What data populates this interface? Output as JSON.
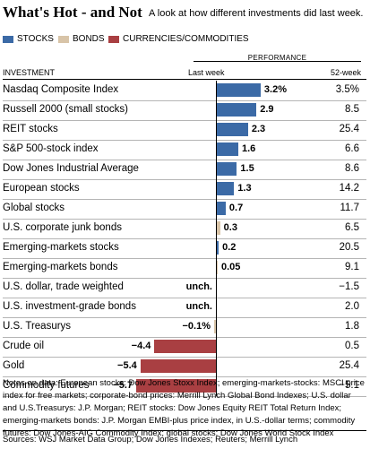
{
  "header": {
    "title": "What's Hot - and Not",
    "subtitle": "A look at how different investments did last week."
  },
  "legend": [
    {
      "label": "STOCKS",
      "color": "#3b6aa6"
    },
    {
      "label": "BONDS",
      "color": "#d8c4a8"
    },
    {
      "label": "CURRENCIES/COMMODITIES",
      "color": "#a93f42"
    }
  ],
  "columns": {
    "performance": "PERFORMANCE",
    "investment": "INVESTMENT",
    "last_week": "Last week",
    "week52": "52-week"
  },
  "chart_data": {
    "type": "bar",
    "title": "What's Hot - and Not",
    "categories": [
      "Nasdaq Composite Index",
      "Russell 2000 (small stocks)",
      "REIT stocks",
      "S&P 500-stock index",
      "Dow Jones Industrial Average",
      "European stocks",
      "Global stocks",
      "U.S. corporate junk bonds",
      "Emerging-markets stocks",
      "Emerging-markets bonds",
      "U.S. dollar, trade weighted",
      "U.S. investment-grade bonds",
      "U.S. Treasurys",
      "Crude oil",
      "Gold",
      "Commodity futures"
    ],
    "last_week": [
      3.2,
      2.9,
      2.3,
      1.6,
      1.5,
      1.3,
      0.7,
      0.3,
      0.2,
      0.05,
      0,
      0,
      -0.1,
      -4.4,
      -5.4,
      -5.7
    ],
    "last_week_labels": [
      "3.2%",
      "2.9",
      "2.3",
      "1.6",
      "1.5",
      "1.3",
      "0.7",
      "0.3",
      "0.2",
      "0.05",
      "unch.",
      "unch.",
      "−0.1%",
      "−4.4",
      "−5.4",
      "−5.7"
    ],
    "week52_labels": [
      "3.5%",
      "8.5",
      "25.4",
      "6.6",
      "8.6",
      "14.2",
      "11.7",
      "6.5",
      "20.5",
      "9.1",
      "−1.5",
      "2.0",
      "1.8",
      "0.5",
      "25.4",
      "−5.1"
    ],
    "week52": [
      3.5,
      8.5,
      25.4,
      6.6,
      8.6,
      14.2,
      11.7,
      6.5,
      20.5,
      9.1,
      -1.5,
      2.0,
      1.8,
      0.5,
      25.4,
      -5.1
    ],
    "group": [
      "stocks",
      "stocks",
      "stocks",
      "stocks",
      "stocks",
      "stocks",
      "stocks",
      "bonds",
      "stocks",
      "bonds",
      "currencies",
      "bonds",
      "bonds",
      "commodities",
      "commodities",
      "commodities"
    ],
    "colors": {
      "stocks": "#3b6aa6",
      "bonds": "#d8c4a8",
      "currencies": "#a93f42",
      "commodities": "#a93f42"
    }
  },
  "notes": "Notes on data: European stocks: Dow Jones Stoxx Index; emerging-markets-stocks: MSCI price index for free markets; corporate-bond prices: Merrill Lynch Global Bond Indexes; U.S. dollar and U.S.Treasurys: J.P. Morgan; REIT stocks: Dow Jones Equity REIT Total Return Index; emerging-markets bonds: J.P. Morgan EMBI-plus price index, in U.S.-dollar terms; commodity futures: Dow Jones-AIG Commodity Index; global stocks: Dow Jones World Stock Index",
  "source": "Sources: WSJ Market Data Group; Dow Jones Indexes; Reuters; Merrill Lynch"
}
